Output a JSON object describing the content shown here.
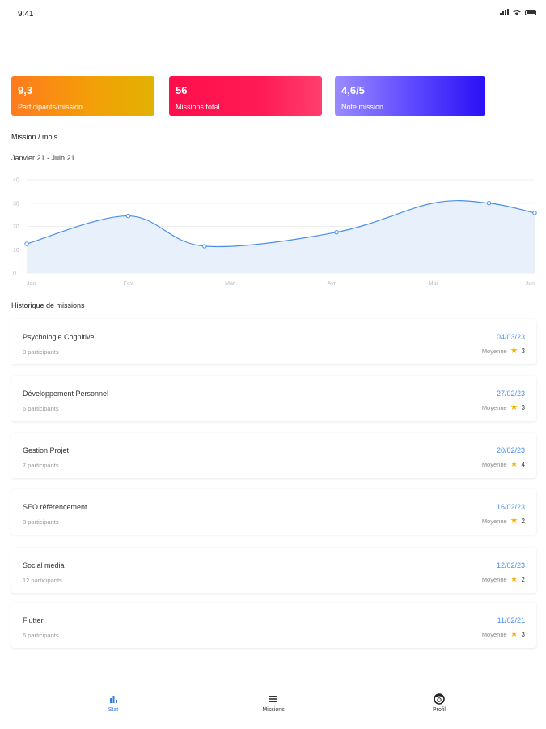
{
  "status_bar": {
    "time": "9:41"
  },
  "stats": [
    {
      "value": "9,3",
      "label": "Participants/mission"
    },
    {
      "value": "56",
      "label": "Missions total"
    },
    {
      "value": "4,6/5",
      "label": "Note mission"
    }
  ],
  "chart_section": {
    "title": "Mission / mois",
    "period": "Janvier 21 - Juin 21"
  },
  "chart_data": {
    "type": "area",
    "x": [
      "Jan",
      "Fev",
      "Mar",
      "Avr",
      "Mai",
      "Jun"
    ],
    "y_ticks": [
      0,
      10,
      20,
      30,
      40
    ],
    "ylim": [
      0,
      40
    ],
    "series": [
      {
        "points": [
          {
            "x": 0.0,
            "y": 12.5
          },
          {
            "x": 1.0,
            "y": 24.5
          },
          {
            "x": 1.75,
            "y": 11.5
          },
          {
            "x": 3.05,
            "y": 17.5
          },
          {
            "x": 4.0,
            "y": 30.0
          },
          {
            "x": 4.55,
            "y": 30.0
          },
          {
            "x": 5.0,
            "y": 25.8
          }
        ]
      }
    ],
    "line_color": "#4a8fe8",
    "fill_color": "#e8f0fc",
    "grid": true
  },
  "history": {
    "title": "Historique de missions",
    "items": [
      {
        "title": "Psychologie Cognitive",
        "participants": "8 participants",
        "date": "04/03/23",
        "avg_label": "Moyenne",
        "rating": "3"
      },
      {
        "title": "Développement Personnel",
        "participants": "6 participants",
        "date": "27/02/23",
        "avg_label": "Moyenne",
        "rating": "3"
      },
      {
        "title": "Gestion Projet",
        "participants": "7 participants",
        "date": "20/02/23",
        "avg_label": "Moyenne",
        "rating": "4"
      },
      {
        "title": "SEO référencement",
        "participants": "8 participants",
        "date": "16/02/23",
        "avg_label": "Moyenne",
        "rating": "2"
      },
      {
        "title": "Social media",
        "participants": "12 participants",
        "date": "12/02/23",
        "avg_label": "Moyenne",
        "rating": "2"
      },
      {
        "title": "Flutter",
        "participants": "6 participants",
        "date": "11/02/21",
        "avg_label": "Moyenne",
        "rating": "3"
      }
    ]
  },
  "tabbar": {
    "stat": "Stat",
    "missions": "Missions",
    "profil": "Profil",
    "active": "stat",
    "active_color": "#2f7be6",
    "icons": {
      "stat": "bar-chart-icon",
      "missions": "list-icon",
      "profil": "user-circle-icon"
    }
  }
}
